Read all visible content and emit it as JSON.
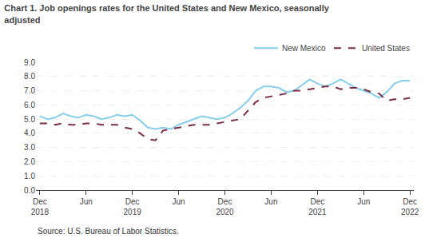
{
  "chart_data": {
    "type": "line",
    "title": "Chart 1. Job openings rates for the United States and New Mexico, seasonally\nadjusted",
    "annotations": [
      "Source: U.S. Bureau of Labor Statistics."
    ],
    "categories": [
      "Dec\n2018",
      null,
      null,
      null,
      null,
      null,
      "Jun",
      null,
      null,
      null,
      null,
      null,
      "Dec\n2019",
      null,
      null,
      null,
      null,
      null,
      "Jun",
      null,
      null,
      null,
      null,
      null,
      "Dec\n2020",
      null,
      null,
      null,
      null,
      null,
      "Jun",
      null,
      null,
      null,
      null,
      null,
      "Dec\n2021",
      null,
      null,
      null,
      null,
      null,
      "Jun",
      null,
      null,
      null,
      null,
      null,
      "Dec\n2022"
    ],
    "series": [
      {
        "name": "New Mexico",
        "color": "#87CEEB",
        "line_style": "solid",
        "values": [
          5.2,
          5.0,
          5.1,
          5.4,
          5.2,
          5.1,
          5.3,
          5.2,
          5.0,
          5.1,
          5.3,
          5.2,
          5.3,
          4.9,
          4.4,
          4.3,
          4.4,
          4.3,
          4.6,
          4.8,
          5.0,
          5.2,
          5.1,
          5.0,
          5.1,
          5.4,
          5.8,
          6.3,
          7.0,
          7.3,
          7.3,
          7.2,
          6.9,
          7.0,
          7.4,
          7.8,
          7.5,
          7.3,
          7.5,
          7.8,
          7.5,
          7.2,
          7.0,
          6.8,
          6.5,
          6.9,
          7.5,
          7.7,
          7.7
        ]
      },
      {
        "name": "United States",
        "color": "#7B2D42",
        "line_style": "dashed",
        "values": [
          4.7,
          4.7,
          4.6,
          4.7,
          4.6,
          4.6,
          4.7,
          4.7,
          4.6,
          4.6,
          4.6,
          4.4,
          4.3,
          4.0,
          3.6,
          3.5,
          4.2,
          4.3,
          4.4,
          4.5,
          4.6,
          4.6,
          4.6,
          4.7,
          4.8,
          4.9,
          5.0,
          5.6,
          6.2,
          6.5,
          6.6,
          6.7,
          6.8,
          7.0,
          7.0,
          7.1,
          7.2,
          7.3,
          7.3,
          7.1,
          7.2,
          7.2,
          7.1,
          6.9,
          6.8,
          6.3,
          6.4,
          6.4,
          6.5
        ]
      }
    ],
    "ylim": [
      0.0,
      9.0
    ],
    "yticks": [
      {
        "value": 0,
        "label": "0.0"
      },
      {
        "value": 1,
        "label": "1.0"
      },
      {
        "value": 2,
        "label": "2.0"
      },
      {
        "value": 3,
        "label": "3.0"
      },
      {
        "value": 4,
        "label": "4.0"
      },
      {
        "value": 5,
        "label": "5.0"
      },
      {
        "value": 6,
        "label": "6.0"
      },
      {
        "value": 7,
        "label": "7.0"
      },
      {
        "value": 8,
        "label": "8.0"
      },
      {
        "value": 9,
        "label": "9.0"
      }
    ],
    "grid": true,
    "legend": "top right"
  }
}
